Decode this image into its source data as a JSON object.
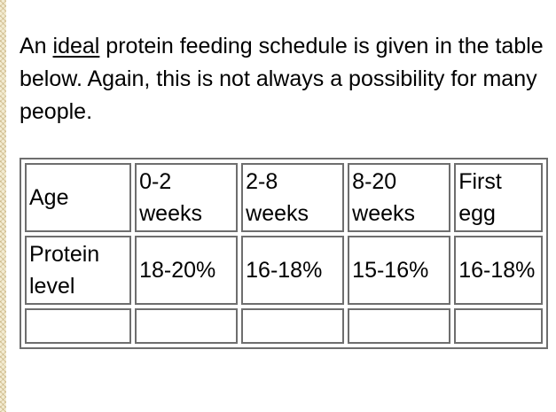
{
  "intro": {
    "before": "An ",
    "emphasis": "ideal",
    "after": " protein feeding schedule is given in the table below.  Again, this is not always a possibility for many people."
  },
  "table": {
    "header": [
      "Age",
      "0-2 weeks",
      "2-8 weeks",
      "8-20 weeks",
      "First egg"
    ],
    "rows": [
      [
        "Protein level",
        "18-20%",
        "16-18%",
        "15-16%",
        "16-18%"
      ],
      [
        "",
        "",
        "",
        "",
        ""
      ]
    ]
  }
}
